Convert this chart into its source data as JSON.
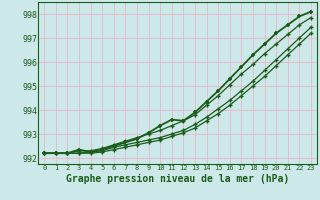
{
  "title": "Graphe pression niveau de la mer (hPa)",
  "background_color": "#cce8e8",
  "grid_color_h": "#e8b8c8",
  "grid_color_v": "#e8b8c8",
  "line_color": "#1a5c1a",
  "xlim": [
    -0.5,
    23.5
  ],
  "ylim": [
    991.75,
    998.5
  ],
  "yticks": [
    992,
    993,
    994,
    995,
    996,
    997,
    998
  ],
  "xtick_labels": [
    "0",
    "1",
    "2",
    "3",
    "4",
    "5",
    "6",
    "7",
    "8",
    "9",
    "10",
    "11",
    "12",
    "13",
    "14",
    "15",
    "16",
    "17",
    "18",
    "19",
    "20",
    "21",
    "22",
    "23"
  ],
  "line1": [
    992.2,
    992.2,
    992.2,
    992.3,
    992.3,
    992.4,
    992.55,
    992.7,
    992.85,
    993.0,
    993.15,
    993.35,
    993.55,
    993.8,
    994.2,
    994.6,
    995.05,
    995.5,
    995.9,
    996.35,
    996.75,
    997.15,
    997.55,
    997.85
  ],
  "line2": [
    992.2,
    992.2,
    992.2,
    992.2,
    992.25,
    992.3,
    992.45,
    992.55,
    992.65,
    992.75,
    992.85,
    993.0,
    993.15,
    993.4,
    993.7,
    994.05,
    994.4,
    994.8,
    995.2,
    995.65,
    996.1,
    996.55,
    997.0,
    997.45
  ],
  "line3": [
    992.2,
    992.2,
    992.2,
    992.35,
    992.25,
    992.35,
    992.5,
    992.65,
    992.8,
    993.05,
    993.35,
    993.6,
    993.55,
    993.9,
    994.35,
    994.8,
    995.3,
    995.8,
    996.3,
    996.75,
    997.2,
    997.55,
    997.9,
    998.1
  ],
  "line4": [
    992.2,
    992.2,
    992.2,
    992.2,
    992.2,
    992.25,
    992.35,
    992.45,
    992.55,
    992.65,
    992.75,
    992.9,
    993.05,
    993.25,
    993.55,
    993.85,
    994.2,
    994.6,
    995.0,
    995.4,
    995.85,
    996.3,
    996.75,
    997.2
  ],
  "font_size_tick_x": 5,
  "font_size_tick_y": 6,
  "font_size_title": 7
}
